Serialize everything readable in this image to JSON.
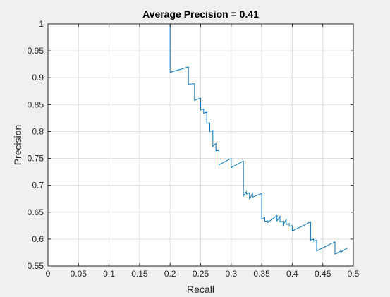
{
  "chart_data": {
    "type": "line",
    "title": "Average Precision = 0.41",
    "xlabel": "Recall",
    "ylabel": "Precision",
    "xlim": [
      0,
      0.5
    ],
    "ylim": [
      0.55,
      1
    ],
    "grid": true,
    "x_ticks": [
      "0",
      "0.05",
      "0.1",
      "0.15",
      "0.2",
      "0.25",
      "0.3",
      "0.35",
      "0.4",
      "0.45",
      "0.5"
    ],
    "y_ticks": [
      "0.55",
      "0.6",
      "0.65",
      "0.7",
      "0.75",
      "0.8",
      "0.85",
      "0.9",
      "0.95",
      "1"
    ],
    "line_color": "#0072bd",
    "series": [
      {
        "x": [
          0.0,
          0.2,
          0.2,
          0.23,
          0.23,
          0.24,
          0.24,
          0.25,
          0.25,
          0.255,
          0.255,
          0.26,
          0.26,
          0.265,
          0.265,
          0.27,
          0.27,
          0.275,
          0.275,
          0.28,
          0.28,
          0.3,
          0.3,
          0.32,
          0.32,
          0.325,
          0.325,
          0.33,
          0.33,
          0.335,
          0.335,
          0.35,
          0.35,
          0.355,
          0.355,
          0.36,
          0.36,
          0.375,
          0.375,
          0.38,
          0.38,
          0.385,
          0.385,
          0.39,
          0.39,
          0.395,
          0.395,
          0.4,
          0.4,
          0.43,
          0.43,
          0.435,
          0.435,
          0.44,
          0.44,
          0.47,
          0.47,
          0.48,
          0.48,
          0.49
        ],
        "y": [
          1.0,
          1.0,
          0.91,
          0.92,
          0.888,
          0.889,
          0.858,
          0.862,
          0.84,
          0.842,
          0.834,
          0.836,
          0.815,
          0.816,
          0.8,
          0.802,
          0.772,
          0.778,
          0.764,
          0.765,
          0.738,
          0.75,
          0.733,
          0.745,
          0.68,
          0.688,
          0.684,
          0.686,
          0.674,
          0.686,
          0.678,
          0.685,
          0.637,
          0.64,
          0.633,
          0.634,
          0.631,
          0.644,
          0.634,
          0.642,
          0.632,
          0.633,
          0.626,
          0.636,
          0.627,
          0.629,
          0.624,
          0.625,
          0.615,
          0.632,
          0.598,
          0.6,
          0.596,
          0.598,
          0.578,
          0.595,
          0.572,
          0.578,
          0.576,
          0.583
        ]
      }
    ]
  }
}
